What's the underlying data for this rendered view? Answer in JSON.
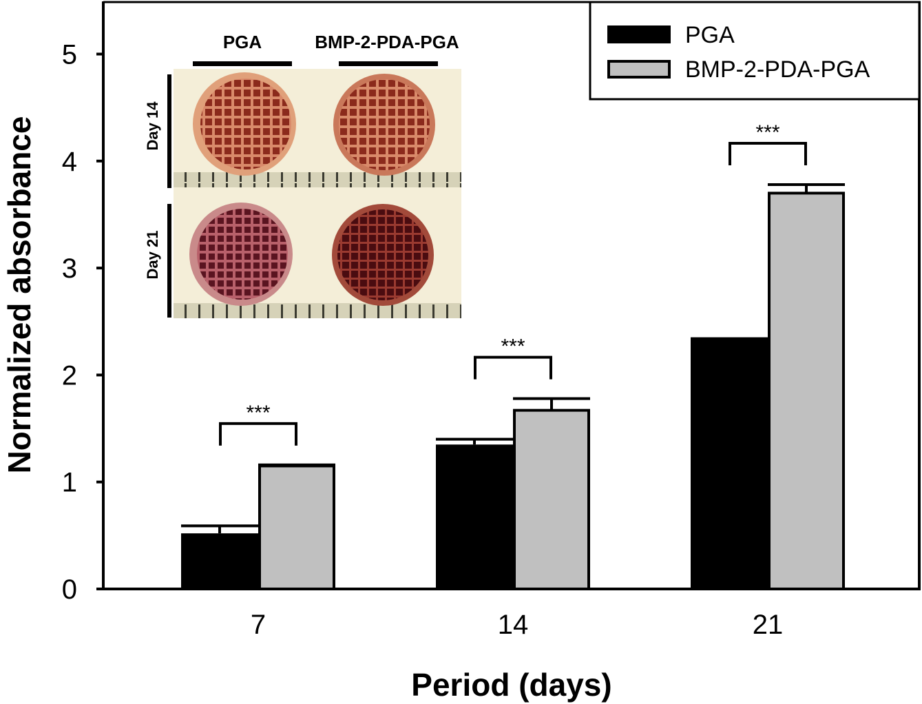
{
  "chart_data": {
    "type": "bar",
    "title": "",
    "xlabel": "Period (days)",
    "ylabel": "Normalized absorbance",
    "categories": [
      "7",
      "14",
      "21"
    ],
    "ylim": [
      0,
      5.5
    ],
    "yticks": [
      0,
      1,
      2,
      3,
      4,
      5
    ],
    "grid": false,
    "legend_position": "top-right",
    "series": [
      {
        "name": "PGA",
        "color": "#000000",
        "values": [
          0.52,
          1.35,
          2.33
        ],
        "errors": [
          0.07,
          0.05,
          0.01
        ]
      },
      {
        "name": "BMP-2-PDA-PGA",
        "color": "#c0c0c0",
        "values": [
          1.15,
          1.67,
          3.7
        ],
        "errors": [
          0.01,
          0.11,
          0.08
        ]
      }
    ],
    "annotations": [
      {
        "category": "7",
        "text": "***"
      },
      {
        "category": "14",
        "text": "***"
      },
      {
        "category": "21",
        "text": "***"
      }
    ],
    "inset": {
      "column_labels": [
        "PGA",
        "BMP-2-PDA-PGA"
      ],
      "row_labels": [
        "Day 14",
        "Day 21"
      ]
    }
  }
}
